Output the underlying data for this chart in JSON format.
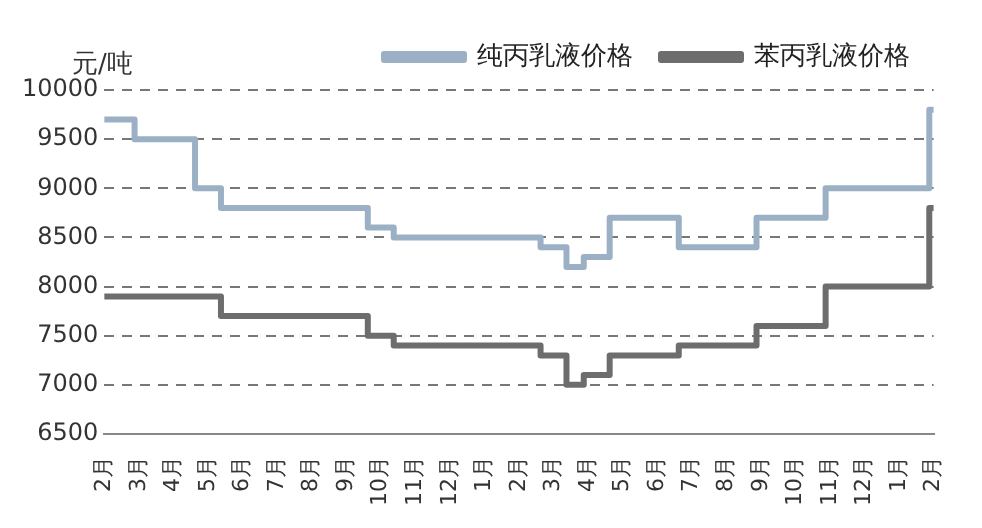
{
  "chart_data": {
    "type": "step",
    "ylabel": "元/吨",
    "categories": [
      "2月",
      null,
      null,
      null,
      "3月",
      null,
      null,
      null,
      "4月",
      null,
      null,
      null,
      "5月",
      null,
      null,
      null,
      "6月",
      null,
      null,
      null,
      "7月",
      null,
      null,
      null,
      "8月",
      null,
      null,
      null,
      "9月",
      null,
      null,
      null,
      "10月",
      null,
      null,
      null,
      "11月",
      null,
      null,
      null,
      "12月",
      null,
      null,
      null,
      "1月",
      null,
      null,
      null,
      "2月",
      null,
      null,
      null,
      "3月",
      null,
      null,
      null,
      "4月",
      null,
      null,
      null,
      "5月",
      null,
      null,
      null,
      "6月",
      null,
      null,
      null,
      "7月",
      null,
      null,
      null,
      "8月",
      null,
      null,
      null,
      "9月",
      null,
      null,
      null,
      "10月",
      null,
      null,
      null,
      "11月",
      null,
      null,
      null,
      "12月",
      null,
      null,
      null,
      "1月",
      null,
      null,
      null,
      "2月"
    ],
    "ylim": [
      6500,
      10000
    ],
    "yticks": [
      6500,
      7000,
      7500,
      8000,
      8500,
      9000,
      9500,
      10000
    ],
    "grid": "y",
    "legend": "top",
    "marker": "none",
    "series": [
      {
        "name": "纯丙乳液价格",
        "color": "#9bb0c4",
        "values": [
          9700,
          9700,
          9700,
          9700,
          9500,
          9500,
          9500,
          9500,
          9500,
          9500,
          9500,
          9000,
          9000,
          9000,
          8800,
          8800,
          8800,
          8800,
          8800,
          8800,
          8800,
          8800,
          8800,
          8800,
          8800,
          8800,
          8800,
          8800,
          8800,
          8800,
          8800,
          8600,
          8600,
          8600,
          8500,
          8500,
          8500,
          8500,
          8500,
          8500,
          8500,
          8500,
          8500,
          8500,
          8500,
          8500,
          8500,
          8500,
          8500,
          8500,
          8500,
          8400,
          8400,
          8400,
          8200,
          8200,
          8300,
          8300,
          8300,
          8700,
          8700,
          8700,
          8700,
          8700,
          8700,
          8700,
          8700,
          8400,
          8400,
          8400,
          8400,
          8400,
          8400,
          8400,
          8400,
          8400,
          8700,
          8700,
          8700,
          8700,
          8700,
          8700,
          8700,
          8700,
          9000,
          9000,
          9000,
          9000,
          9000,
          9000,
          9000,
          9000,
          9000,
          9000,
          9000,
          9000,
          9800
        ]
      },
      {
        "name": "苯丙乳液价格",
        "color": "#6d6d6d",
        "values": [
          7900,
          7900,
          7900,
          7900,
          7900,
          7900,
          7900,
          7900,
          7900,
          7900,
          7900,
          7900,
          7900,
          7900,
          7700,
          7700,
          7700,
          7700,
          7700,
          7700,
          7700,
          7700,
          7700,
          7700,
          7700,
          7700,
          7700,
          7700,
          7700,
          7700,
          7700,
          7500,
          7500,
          7500,
          7400,
          7400,
          7400,
          7400,
          7400,
          7400,
          7400,
          7400,
          7400,
          7400,
          7400,
          7400,
          7400,
          7400,
          7400,
          7400,
          7400,
          7300,
          7300,
          7300,
          7000,
          7000,
          7100,
          7100,
          7100,
          7300,
          7300,
          7300,
          7300,
          7300,
          7300,
          7300,
          7300,
          7400,
          7400,
          7400,
          7400,
          7400,
          7400,
          7400,
          7400,
          7400,
          7600,
          7600,
          7600,
          7600,
          7600,
          7600,
          7600,
          7600,
          8000,
          8000,
          8000,
          8000,
          8000,
          8000,
          8000,
          8000,
          8000,
          8000,
          8000,
          8000,
          8800
        ]
      }
    ]
  }
}
